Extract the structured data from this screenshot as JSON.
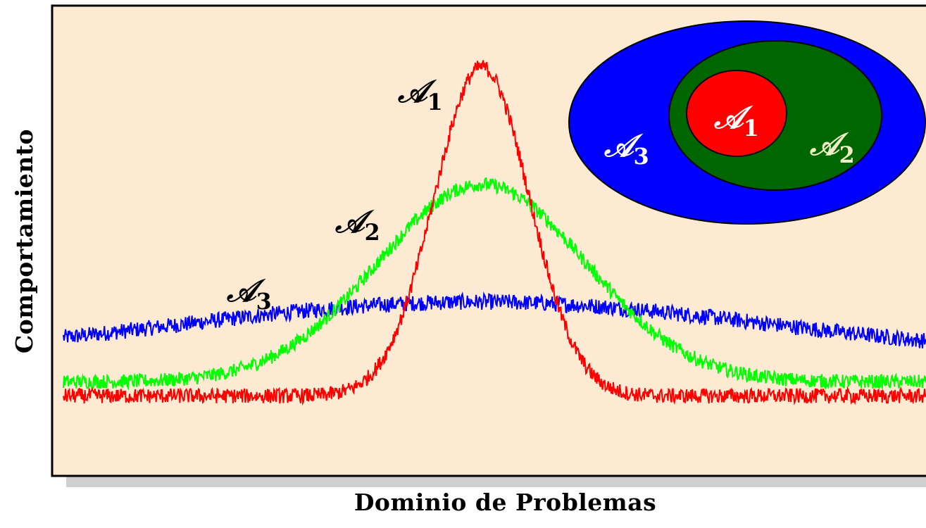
{
  "chart_data": {
    "type": "line",
    "title": "",
    "xlabel": "Dominio de Problemas",
    "ylabel": "Comportamiento",
    "grid": false,
    "x_range": [
      0,
      100
    ],
    "y_range": [
      0,
      100
    ],
    "series": [
      {
        "name": "𝒜1",
        "color": "#ff0000",
        "kind": "peak-narrow",
        "description_values": {
          "baseline": 17,
          "peak": 87,
          "center": 48.5,
          "width": 5.5,
          "noise": 1.6
        }
      },
      {
        "name": "𝒜2",
        "color": "#00ff00",
        "kind": "peak-medium",
        "description_values": {
          "baseline": 20,
          "peak": 62,
          "center": 48.5,
          "width": 12,
          "noise": 1.5
        }
      },
      {
        "name": "𝒜3",
        "color": "#0000ff",
        "kind": "peak-wide",
        "description_values": {
          "baseline": 25,
          "peak": 37,
          "center": 48,
          "width": 34,
          "noise": 1.7
        }
      }
    ],
    "line_labels": [
      {
        "text": "𝒜",
        "sub": "1",
        "series": 0
      },
      {
        "text": "𝒜",
        "sub": "2",
        "series": 1
      },
      {
        "text": "𝒜",
        "sub": "3",
        "series": 2
      }
    ],
    "inset": {
      "outer": {
        "text": "𝒜",
        "sub": "3",
        "fill": "#0000ff"
      },
      "middle": {
        "text": "𝒜",
        "sub": "2",
        "fill": "#006600"
      },
      "inner": {
        "text": "𝒜",
        "sub": "1",
        "fill": "#ff0000"
      }
    },
    "colors": {
      "plot_background": "#fcebd2",
      "shadow": "#c8c8c8",
      "axis": "#000000"
    }
  }
}
